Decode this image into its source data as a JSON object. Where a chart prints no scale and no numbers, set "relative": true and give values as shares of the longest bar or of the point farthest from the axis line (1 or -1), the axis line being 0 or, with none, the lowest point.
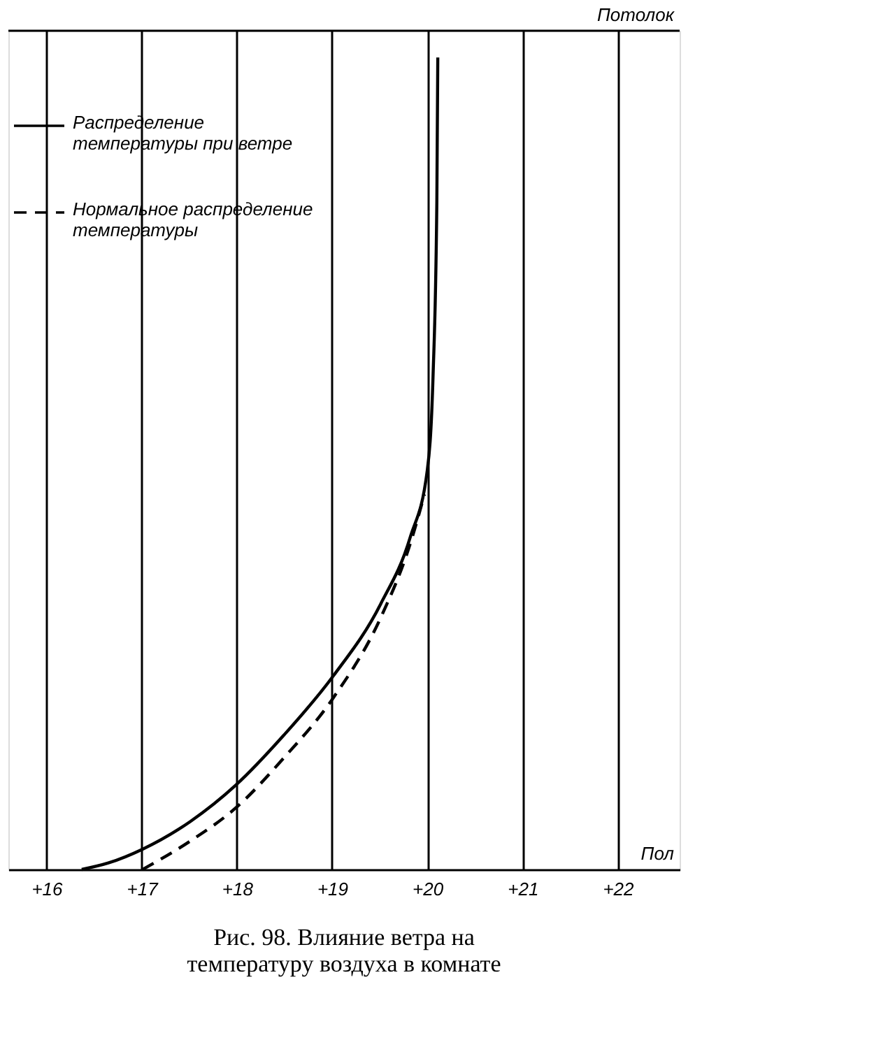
{
  "chart_data": {
    "type": "line",
    "title": "Рис. 98. Влияние ветра на температуру воздуха в комнате",
    "relative": true,
    "xlim": [
      15.6,
      22.65
    ],
    "xticks": [
      {
        "value": 16,
        "label": "+16"
      },
      {
        "value": 17,
        "label": "+17"
      },
      {
        "value": 18,
        "label": "+18"
      },
      {
        "value": 19,
        "label": "+19"
      },
      {
        "value": 20,
        "label": "+20"
      },
      {
        "value": 21,
        "label": "+21"
      },
      {
        "value": 22,
        "label": "+22"
      }
    ],
    "series": [
      {
        "name": "Распределение температуры при ветре",
        "color": "#000000",
        "line_style": "solid",
        "x": [
          16.37,
          16.65,
          17.01,
          17.51,
          17.99,
          18.49,
          19.01,
          19.51,
          19.82,
          20.0,
          20.06,
          20.1,
          20.11
        ],
        "values": [
          0,
          0.008,
          0.025,
          0.059,
          0.104,
          0.165,
          0.238,
          0.327,
          0.409,
          0.492,
          0.607,
          0.822,
          1.0
        ]
      },
      {
        "name": "Нормальное распределение температуры",
        "color": "#000000",
        "line_style": "dashed",
        "x": [
          17.01,
          17.51,
          17.99,
          18.49,
          19.01,
          19.51,
          19.82,
          19.97
        ],
        "values": [
          0,
          0.035,
          0.076,
          0.137,
          0.211,
          0.31,
          0.401,
          0.462
        ]
      }
    ],
    "ref_lines": [
      {
        "axis": "y",
        "value": 1.033,
        "label": "Потолок"
      }
    ],
    "annotations": [
      "Пол"
    ],
    "grid": "x",
    "legend": "top left",
    "marker": "none"
  }
}
